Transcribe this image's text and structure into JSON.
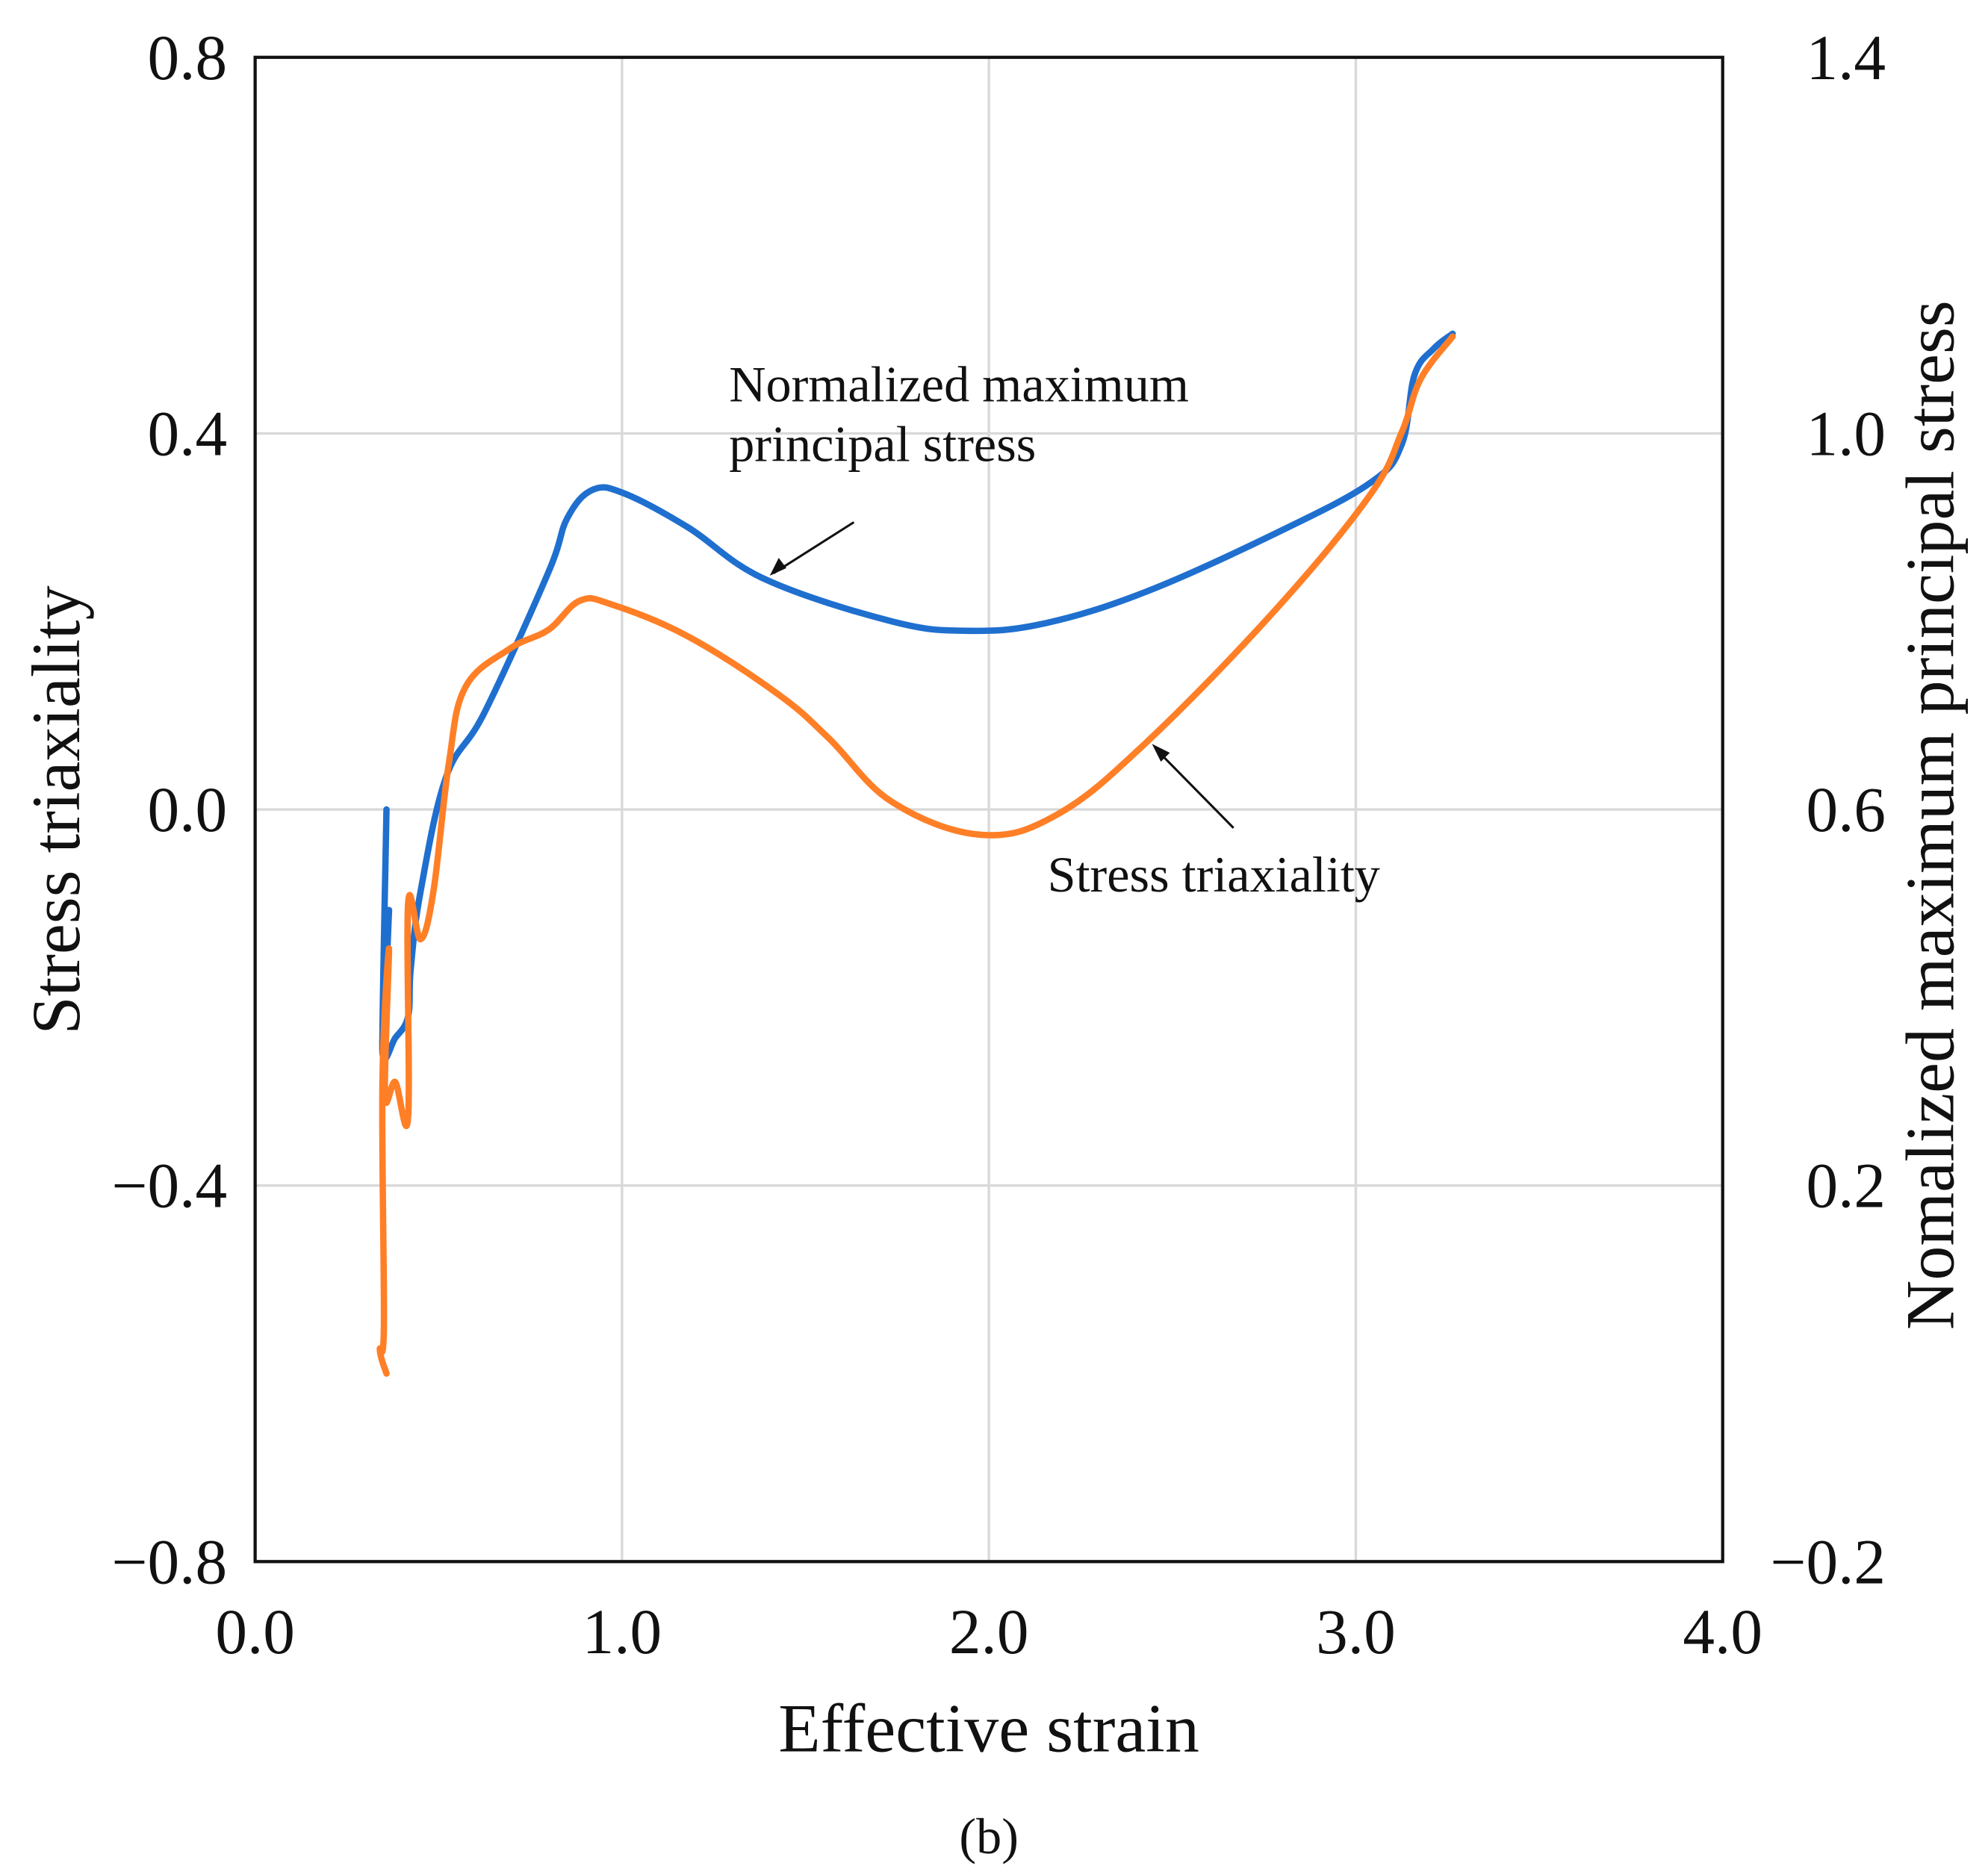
{
  "chart_data": {
    "type": "line",
    "panel_label": "(b)",
    "xlabel": "Effective strain",
    "ylabel_left": "Stress triaxiality",
    "ylabel_right": "Nomalized maximum principal stress",
    "xlim": [
      0.0,
      4.0
    ],
    "ylim_left": [
      -0.8,
      0.8
    ],
    "ylim_right": [
      -0.2,
      1.4
    ],
    "x_ticks": [
      "0.0",
      "1.0",
      "2.0",
      "3.0",
      "4.0"
    ],
    "y_ticks_left": [
      "-0.8",
      "-0.4",
      "0.0",
      "0.4",
      "0.8"
    ],
    "y_ticks_right": [
      "-0.2",
      "0.2",
      "0.6",
      "1.0",
      "1.4"
    ],
    "grid": true,
    "series": [
      {
        "name": "Normalized maximum principal stress",
        "axis": "right",
        "color": "#1f6fcf",
        "x": [
          0.358,
          0.347,
          0.365,
          0.347,
          0.382,
          0.417,
          0.424,
          0.451,
          0.521,
          0.625,
          0.799,
          0.851,
          0.92,
          1.007,
          1.18,
          1.389,
          1.736,
          1.944,
          2.153,
          2.431,
          2.778,
          3.038,
          3.125,
          3.16,
          3.212,
          3.264
        ],
        "y": [
          0.6,
          0.35,
          0.493,
          0.343,
          0.357,
          0.38,
          0.43,
          0.513,
          0.635,
          0.703,
          0.852,
          0.91,
          0.94,
          0.936,
          0.9,
          0.845,
          0.8,
          0.79,
          0.798,
          0.832,
          0.893,
          0.947,
          0.988,
          1.062,
          1.09,
          1.106
        ]
      },
      {
        "name": "Stress triaxiality",
        "axis": "left",
        "color": "#ff7f27",
        "x": [
          0.358,
          0.34,
          0.351,
          0.347,
          0.365,
          0.354,
          0.382,
          0.417,
          0.417,
          0.451,
          0.486,
          0.528,
          0.573,
          0.694,
          0.799,
          0.885,
          0.972,
          1.18,
          1.424,
          1.563,
          1.736,
          1.979,
          2.188,
          2.431,
          2.778,
          3.038,
          3.125,
          3.177,
          3.264
        ],
        "y": [
          -0.6,
          -0.575,
          -0.548,
          -0.29,
          -0.148,
          -0.304,
          -0.29,
          -0.327,
          -0.1,
          -0.138,
          -0.087,
          0.049,
          0.13,
          0.171,
          0.191,
          0.222,
          0.218,
          0.184,
          0.123,
          0.076,
          0.008,
          -0.027,
          -0.005,
          0.072,
          0.211,
          0.334,
          0.401,
          0.458,
          0.503
        ]
      }
    ],
    "annotations": [
      {
        "lines": [
          "Normalized maximum",
          "principal stress"
        ],
        "target_series": 0
      },
      {
        "lines": [
          "Stress triaxiality"
        ],
        "target_series": 1
      }
    ]
  }
}
